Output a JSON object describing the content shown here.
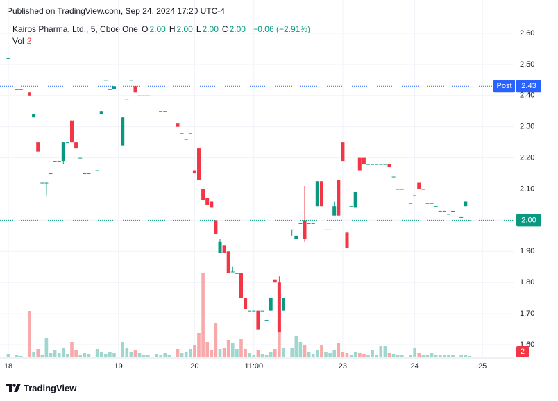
{
  "header": "Published on TradingView.com, Sep 24, 2024 17:20 UTC-4",
  "footer": "TradingView",
  "chart_data": {
    "type": "candlestick",
    "legend": {
      "symbol": "Kairos Pharma, Ltd., 5, Cboe One",
      "ohlc": [
        {
          "label": "O",
          "value": "2.00"
        },
        {
          "label": "H",
          "value": "2.00"
        },
        {
          "label": "L",
          "value": "2.00"
        },
        {
          "label": "C",
          "value": "2.00"
        }
      ],
      "change": "−0.06 (−2.91%)",
      "volume_label": "Vol"
    },
    "up_color": "#089981",
    "down_color": "#f23645",
    "up_volume_color": "#9fd6cd",
    "down_volume_color": "#f8a9a9",
    "ylim": [
      1.56,
      2.64
    ],
    "yticks": [
      {
        "value": 1.6,
        "label": "1.60"
      },
      {
        "value": 1.7,
        "label": "1.70"
      },
      {
        "value": 1.8,
        "label": "1.80"
      },
      {
        "value": 1.9,
        "label": "1.90"
      },
      {
        "value": 2.0,
        "label": "2.00"
      },
      {
        "value": 2.1,
        "label": "2.10"
      },
      {
        "value": 2.2,
        "label": "2.20"
      },
      {
        "value": 2.3,
        "label": "2.30"
      },
      {
        "value": 2.4,
        "label": "2.40"
      },
      {
        "value": 2.5,
        "label": "2.50"
      },
      {
        "value": 2.6,
        "label": "2.60"
      }
    ],
    "grid": true,
    "post_market": {
      "label": "Post",
      "value": 2.43,
      "color": "#2962ff"
    },
    "last_price": {
      "value": 2,
      "label": "2.00",
      "color": "#089981"
    },
    "categories": [
      "18",
      null,
      null,
      null,
      null,
      null,
      null,
      null,
      null,
      null,
      null,
      null,
      null,
      null,
      null,
      null,
      null,
      null,
      null,
      null,
      null,
      null,
      null,
      null,
      null,
      null,
      "19",
      null,
      null,
      null,
      null,
      null,
      null,
      null,
      null,
      null,
      null,
      null,
      null,
      null,
      null,
      null,
      null,
      null,
      "20",
      null,
      null,
      null,
      null,
      null,
      null,
      null,
      null,
      null,
      null,
      null,
      null,
      null,
      "11:00",
      null,
      null,
      null,
      null,
      null,
      null,
      null,
      null,
      null,
      null,
      null,
      null,
      null,
      null,
      null,
      null,
      null,
      null,
      null,
      null,
      "23",
      null,
      null,
      null,
      null,
      null,
      null,
      null,
      null,
      null,
      null,
      null,
      null,
      null,
      null,
      null,
      null,
      "24",
      null,
      null,
      null,
      null,
      null,
      null,
      null,
      null,
      null,
      null,
      null,
      null,
      null,
      null,
      null,
      "25",
      null,
      null,
      null,
      null,
      null,
      null,
      null
    ],
    "open": [
      2.52,
      null,
      2.42,
      2.42,
      null,
      2.41,
      2.33,
      2.25,
      2.12,
      2.12,
      2.15,
      2.19,
      2.19,
      2.19,
      2.25,
      2.32,
      2.25,
      2.2,
      2.15,
      2.15,
      null,
      2.16,
      2.34,
      2.45,
      2.42,
      2.42,
      null,
      2.24,
      2.39,
      2.45,
      2.43,
      2.4,
      2.4,
      2.4,
      null,
      2.355,
      2.35,
      2.35,
      2.355,
      null,
      2.31,
      2.28,
      2.26,
      2.28,
      2.16,
      2.23,
      2.1,
      2.07,
      2.06,
      2.0,
      1.895,
      1.92,
      1.9,
      1.835,
      1.83,
      1.83,
      1.75,
      1.71,
      1.71,
      1.71,
      1.71,
      1.68,
      1.71,
      1.81,
      1.8,
      1.71,
      null,
      1.97,
      1.94,
      1.99,
      2.0,
      1.99,
      1.99,
      2.045,
      2.125,
      1.97,
      1.97,
      2.015,
      2.13,
      2.25,
      1.96,
      2.045,
      2.04,
      2.2,
      2.2,
      2.18,
      2.18,
      2.18,
      2.18,
      2.18,
      2.18,
      2.14,
      2.1,
      2.1,
      null,
      2.055,
      2.08,
      2.12,
      2.1,
      2.055,
      2.055,
      2.045,
      2.03,
      2.03,
      2.02,
      2.03,
      null,
      2.01,
      2.045,
      2.0,
      null,
      null,
      null,
      null,
      null,
      null,
      null,
      null,
      null,
      null
    ],
    "high": [
      2.52,
      null,
      2.42,
      2.42,
      null,
      2.41,
      2.34,
      2.25,
      2.12,
      2.12,
      2.15,
      2.19,
      2.19,
      2.25,
      2.25,
      2.32,
      2.26,
      2.2,
      2.15,
      2.15,
      null,
      2.16,
      2.35,
      2.45,
      2.42,
      2.43,
      null,
      2.33,
      2.39,
      2.45,
      2.43,
      2.4,
      2.4,
      2.4,
      null,
      2.355,
      2.35,
      2.35,
      2.355,
      null,
      2.31,
      2.28,
      2.26,
      2.28,
      2.16,
      2.23,
      2.11,
      2.07,
      2.06,
      2.0,
      1.94,
      1.92,
      1.9,
      1.85,
      1.83,
      1.83,
      1.75,
      1.71,
      1.71,
      1.71,
      1.71,
      1.68,
      1.75,
      1.81,
      1.82,
      1.75,
      null,
      1.97,
      1.95,
      1.99,
      2.11,
      1.99,
      1.99,
      2.125,
      2.125,
      1.97,
      1.97,
      2.06,
      2.13,
      2.25,
      1.96,
      2.045,
      2.09,
      2.2,
      2.2,
      2.18,
      2.18,
      2.18,
      2.18,
      2.18,
      2.18,
      2.14,
      2.1,
      2.1,
      null,
      2.055,
      2.08,
      2.12,
      2.1,
      2.055,
      2.055,
      2.045,
      2.03,
      2.03,
      2.02,
      2.03,
      null,
      2.01,
      2.06,
      2.0,
      null,
      null,
      null,
      null,
      null,
      null,
      null,
      null,
      null,
      null
    ],
    "low": [
      2.52,
      null,
      2.42,
      2.42,
      null,
      2.4,
      2.33,
      2.22,
      2.12,
      2.08,
      2.15,
      2.19,
      2.19,
      2.18,
      2.25,
      2.25,
      2.23,
      2.2,
      2.15,
      2.15,
      null,
      2.16,
      2.34,
      2.45,
      2.42,
      2.42,
      null,
      2.24,
      2.39,
      2.45,
      2.41,
      2.4,
      2.4,
      2.4,
      null,
      2.355,
      2.35,
      2.35,
      2.355,
      null,
      2.3,
      2.28,
      2.26,
      2.28,
      2.15,
      2.13,
      2.06,
      2.05,
      2.04,
      1.955,
      1.895,
      1.895,
      1.83,
      1.835,
      1.83,
      1.75,
      1.715,
      1.71,
      1.71,
      1.65,
      1.71,
      1.68,
      1.71,
      1.8,
      1.64,
      1.71,
      null,
      1.95,
      1.94,
      1.99,
      1.93,
      1.99,
      1.99,
      2.045,
      2.045,
      1.97,
      1.97,
      2.015,
      2.015,
      2.19,
      1.91,
      2.045,
      2.04,
      2.16,
      2.18,
      2.18,
      2.18,
      2.18,
      2.18,
      2.18,
      2.17,
      2.14,
      2.1,
      2.1,
      null,
      2.055,
      2.08,
      2.1,
      2.1,
      2.055,
      2.055,
      2.045,
      2.03,
      2.03,
      2.02,
      2.03,
      null,
      2.01,
      2.045,
      2.0,
      null,
      null,
      null,
      null,
      null,
      null,
      null,
      null,
      null,
      null
    ],
    "close": [
      2.52,
      null,
      2.42,
      2.42,
      null,
      2.4,
      2.34,
      2.22,
      2.12,
      2.12,
      2.15,
      2.19,
      2.19,
      2.25,
      2.25,
      2.25,
      2.23,
      2.2,
      2.15,
      2.15,
      null,
      2.16,
      2.35,
      2.45,
      2.42,
      2.43,
      null,
      2.33,
      2.39,
      2.45,
      2.41,
      2.4,
      2.4,
      2.4,
      null,
      2.355,
      2.35,
      2.35,
      2.355,
      null,
      2.3,
      2.28,
      2.26,
      2.28,
      2.15,
      2.13,
      2.065,
      2.05,
      2.04,
      1.955,
      1.93,
      1.895,
      1.83,
      1.835,
      1.83,
      1.75,
      1.715,
      1.71,
      1.71,
      1.65,
      1.71,
      1.68,
      1.75,
      1.8,
      1.64,
      1.75,
      null,
      1.97,
      1.95,
      1.99,
      1.94,
      1.99,
      1.99,
      2.125,
      2.045,
      1.97,
      1.97,
      2.045,
      2.015,
      2.19,
      1.91,
      2.045,
      2.09,
      2.16,
      2.18,
      2.18,
      2.18,
      2.18,
      2.18,
      2.18,
      2.17,
      2.14,
      2.1,
      2.1,
      null,
      2.055,
      2.08,
      2.1,
      2.1,
      2.055,
      2.055,
      2.045,
      2.03,
      2.03,
      2.02,
      2.03,
      null,
      2.01,
      2.06,
      2.0,
      null,
      null,
      null,
      null,
      null,
      null,
      null,
      null,
      null,
      null
    ],
    "volume": [
      5,
      null,
      3,
      2,
      null,
      67,
      8,
      12,
      4,
      28,
      6,
      10,
      6,
      14,
      5,
      22,
      10,
      4,
      6,
      5,
      null,
      12,
      8,
      5,
      8,
      6,
      null,
      22,
      14,
      8,
      10,
      6,
      4,
      3,
      null,
      5,
      4,
      6,
      3,
      null,
      12,
      6,
      8,
      12,
      18,
      35,
      122,
      22,
      10,
      50,
      12,
      14,
      25,
      20,
      12,
      26,
      12,
      6,
      4,
      10,
      5,
      3,
      8,
      12,
      45,
      14,
      null,
      14,
      30,
      22,
      18,
      8,
      5,
      10,
      18,
      8,
      6,
      10,
      20,
      8,
      6,
      4,
      8,
      6,
      5,
      3,
      10,
      4,
      16,
      16,
      6,
      5,
      4,
      3,
      null,
      4,
      14,
      6,
      4,
      3,
      6,
      3,
      4,
      3,
      4,
      3,
      null,
      3,
      3,
      2,
      null,
      null,
      null,
      null,
      null,
      null,
      null,
      null,
      null,
      null
    ]
  }
}
